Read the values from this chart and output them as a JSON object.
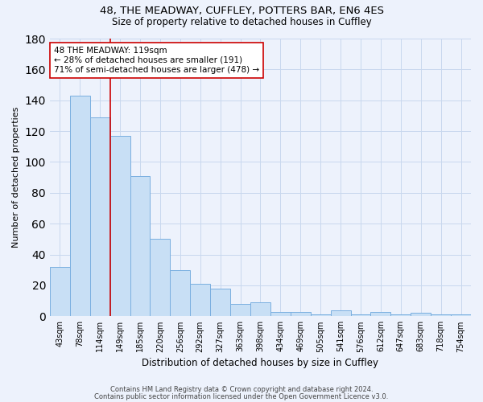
{
  "title": "48, THE MEADWAY, CUFFLEY, POTTERS BAR, EN6 4ES",
  "subtitle": "Size of property relative to detached houses in Cuffley",
  "xlabel": "Distribution of detached houses by size in Cuffley",
  "ylabel": "Number of detached properties",
  "bar_labels": [
    "43sqm",
    "78sqm",
    "114sqm",
    "149sqm",
    "185sqm",
    "220sqm",
    "256sqm",
    "292sqm",
    "327sqm",
    "363sqm",
    "398sqm",
    "434sqm",
    "469sqm",
    "505sqm",
    "541sqm",
    "576sqm",
    "612sqm",
    "647sqm",
    "683sqm",
    "718sqm",
    "754sqm"
  ],
  "bar_values": [
    32,
    143,
    129,
    117,
    91,
    50,
    30,
    21,
    18,
    8,
    9,
    3,
    3,
    1,
    4,
    1,
    3,
    1,
    2,
    1,
    1
  ],
  "bar_color": "#c8dff5",
  "bar_edge_color": "#7aafe0",
  "vline_x": 2,
  "vline_color": "#cc0000",
  "annotation_text": "48 THE MEADWAY: 119sqm\n← 28% of detached houses are smaller (191)\n71% of semi-detached houses are larger (478) →",
  "annotation_box_color": "#ffffff",
  "annotation_box_edge": "#cc0000",
  "ylim": [
    0,
    180
  ],
  "yticks": [
    0,
    20,
    40,
    60,
    80,
    100,
    120,
    140,
    160,
    180
  ],
  "grid_color": "#c8d8ee",
  "background_color": "#edf2fc",
  "footer_line1": "Contains HM Land Registry data © Crown copyright and database right 2024.",
  "footer_line2": "Contains public sector information licensed under the Open Government Licence v3.0."
}
